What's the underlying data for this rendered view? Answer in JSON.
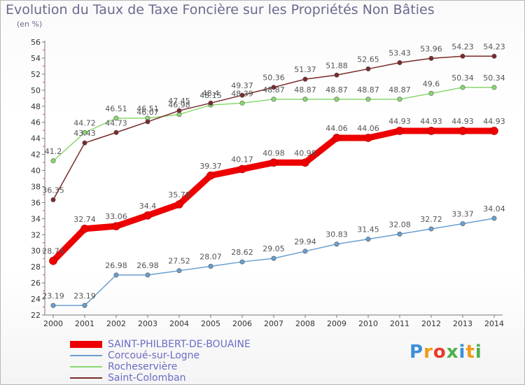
{
  "header": {
    "title": "Evolution du Taux de Taxe Foncière sur les Propriétés Non Bâties",
    "unit": "(en %)"
  },
  "logo": {
    "letters": [
      "P",
      "r",
      "o",
      "x",
      "i",
      "t",
      "i"
    ],
    "colors": [
      "#3a8fd8",
      "#f39a1a",
      "#e83a2a",
      "#4cb04c",
      "#3a8fd8",
      "#f39a1a",
      "#4cb04c"
    ]
  },
  "chart_data": {
    "type": "line",
    "title": "Evolution du Taux de Taxe Foncière sur les Propriétés Non Bâties",
    "ylabel": "(en %)",
    "xlabel": "",
    "x": [
      "2000",
      "2001",
      "2002",
      "2003",
      "2004",
      "2005",
      "2006",
      "2007",
      "2008",
      "2009",
      "2010",
      "2011",
      "2012",
      "2013",
      "2014"
    ],
    "ylim": [
      22,
      56
    ],
    "yticks": [
      22,
      24,
      26,
      28,
      30,
      32,
      34,
      36,
      38,
      40,
      42,
      44,
      46,
      48,
      50,
      52,
      54,
      56
    ],
    "grid": false,
    "legend_position": "bottom-left",
    "series": [
      {
        "name": "SAINT-PHILBERT-DE-BOUAINE",
        "color": "#ee0000",
        "values": [
          28.74,
          32.74,
          33.06,
          34.4,
          35.78,
          39.37,
          40.17,
          40.98,
          40.98,
          44.06,
          44.06,
          44.93,
          44.93,
          44.93,
          44.93
        ],
        "labels": [
          "28.74",
          "32.74",
          "33.06",
          "34.4",
          "35.78",
          "39.37",
          "40.17",
          "40.98",
          "40.98",
          "44.06",
          "44.06",
          "44.93",
          "44.93",
          "44.93",
          "44.93"
        ]
      },
      {
        "name": "Corcoué-sur-Logne",
        "color": "#6a9fd0",
        "values": [
          23.19,
          23.19,
          26.98,
          26.98,
          27.52,
          28.07,
          28.62,
          29.05,
          29.94,
          30.83,
          31.45,
          32.08,
          32.72,
          33.37,
          34.04
        ],
        "labels": [
          "23.19",
          "23.19",
          "26.98",
          "26.98",
          "27.52",
          "28.07",
          "28.62",
          "29.05",
          "29.94",
          "30.83",
          "31.45",
          "32.08",
          "32.72",
          "33.37",
          "34.04"
        ]
      },
      {
        "name": "Rocheservière",
        "color": "#8ad870",
        "values": [
          41.2,
          44.72,
          46.51,
          46.51,
          46.98,
          48.15,
          48.39,
          48.87,
          48.87,
          48.87,
          48.87,
          48.87,
          49.6,
          50.34,
          50.34
        ],
        "labels": [
          "41.2",
          "44.72",
          "46.51",
          "46.51",
          "46.98",
          "48.15",
          "48.39",
          "48.87",
          "48.87",
          "48.87",
          "48.87",
          "48.87",
          "49.6",
          "50.34",
          "50.34"
        ]
      },
      {
        "name": "Saint-Colomban",
        "color": "#7a2a2a",
        "values": [
          36.35,
          43.43,
          44.73,
          46.07,
          47.45,
          48.4,
          49.37,
          50.36,
          51.37,
          51.88,
          52.65,
          53.43,
          53.96,
          54.23,
          54.23
        ],
        "labels": [
          "36.35",
          "43.43",
          "44.73",
          "46.07",
          "47.45",
          "48.4",
          "49.37",
          "50.36",
          "51.37",
          "51.88",
          "52.65",
          "53.43",
          "53.96",
          "54.23",
          "54.23"
        ]
      }
    ]
  }
}
